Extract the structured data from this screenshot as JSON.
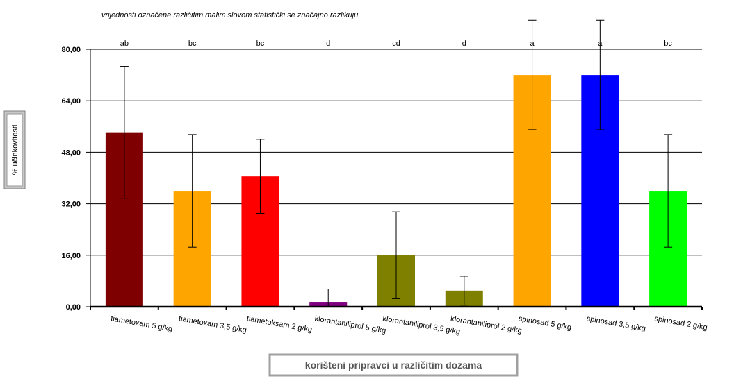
{
  "chart_data": {
    "type": "bar",
    "title": "vrijednosti označene različitim malim slovom statistički se značajno razlikuju",
    "xlabel": "korišteni pripravci u različitim dozama",
    "ylabel": "% učinkovitosti",
    "ylim": [
      0,
      80
    ],
    "yticks": [
      0,
      16,
      32,
      48,
      64,
      80
    ],
    "ytick_labels": [
      "0,00",
      "16,00",
      "32,00",
      "48,00",
      "64,00",
      "80,00"
    ],
    "grid": true,
    "categories": [
      "tiametoxam 5 g/kg",
      "tiametoxam 3,5 g/kg",
      "tiametoksam 2 g/kg",
      "klorantaniliprol 5 g/kg",
      "klorantaniliprol 3,5 g/kg",
      "klorantaniliprol 2 g/kg",
      "spinosad 5 g/kg",
      "spinosad 3,5 g/kg",
      "spinosad 2 g/kg"
    ],
    "values": [
      54.2,
      36.0,
      40.5,
      1.5,
      16.0,
      5.0,
      72.0,
      72.0,
      36.0
    ],
    "error": [
      20.5,
      17.5,
      11.5,
      4.0,
      13.5,
      4.5,
      17.0,
      17.0,
      17.5
    ],
    "significance_letters": [
      "ab",
      "bc",
      "bc",
      "d",
      "cd",
      "d",
      "a",
      "a",
      "bc"
    ],
    "colors": [
      "#7f0000",
      "#ffa500",
      "#ff0000",
      "#800080",
      "#808000",
      "#808000",
      "#ffa500",
      "#0000ff",
      "#00ff00"
    ]
  }
}
